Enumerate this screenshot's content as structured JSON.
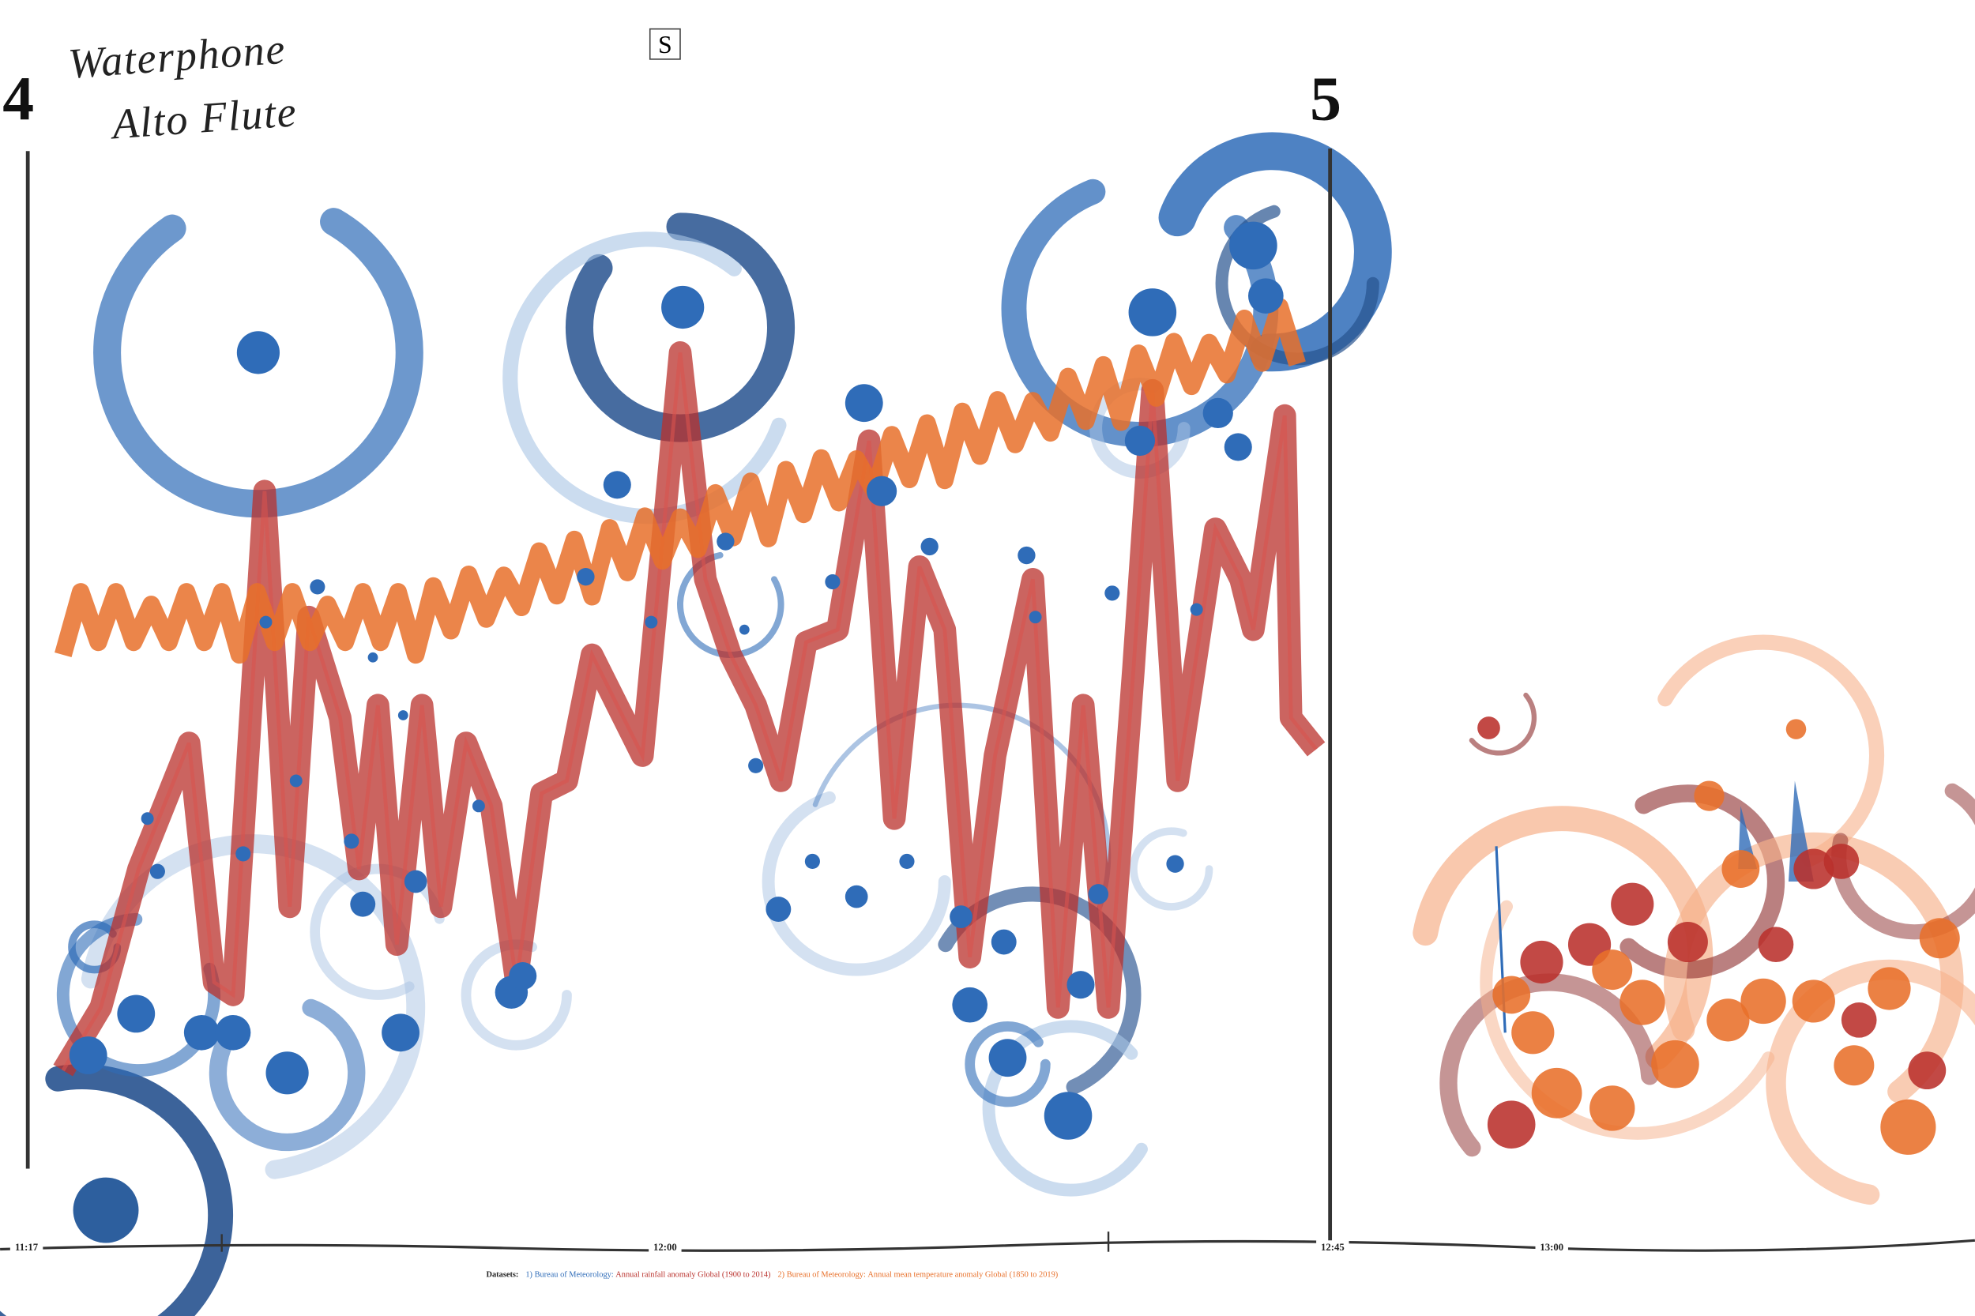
{
  "header": {
    "section_start": "4",
    "instruments": [
      "Waterphone",
      "Alto Flute"
    ],
    "marker": "S",
    "section_end": "5"
  },
  "timeline": {
    "labels": [
      "11:17",
      "12:00",
      "12:45",
      "13:00"
    ]
  },
  "footer": {
    "label": "Datasets:",
    "datasets": [
      {
        "source": "1) Bureau of Meteorology:",
        "title": "Annual rainfall anomaly Global (1900 to 2014)"
      },
      {
        "source": "2) Bureau of Meteorology:",
        "title": "Annual mean temperature anomaly Global (1850 to 2019)"
      }
    ]
  }
}
